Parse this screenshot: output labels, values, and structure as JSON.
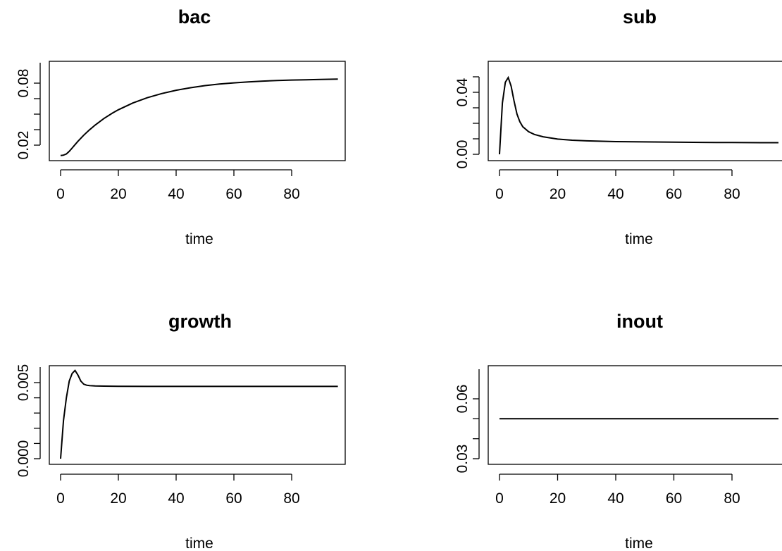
{
  "chart_data": [
    {
      "type": "line",
      "title": "bac",
      "xlabel": "time",
      "ylabel": "",
      "xlim": [
        0,
        96
      ],
      "ylim": [
        0.01,
        0.09
      ],
      "xticks": [
        "0",
        "20",
        "40",
        "60",
        "80"
      ],
      "yticks": [
        "0.02",
        "",
        "",
        "",
        "0.08"
      ],
      "grid": false,
      "series": [
        {
          "x": [
            0,
            1,
            2,
            3,
            4,
            5,
            6,
            8,
            10,
            12,
            15,
            18,
            20,
            25,
            30,
            35,
            40,
            45,
            50,
            55,
            60,
            65,
            70,
            75,
            80,
            85,
            90,
            96
          ],
          "values": [
            0.01,
            0.0103,
            0.0115,
            0.014,
            0.0172,
            0.0205,
            0.0237,
            0.0296,
            0.0348,
            0.0395,
            0.0458,
            0.0511,
            0.0542,
            0.0608,
            0.0659,
            0.0699,
            0.0731,
            0.0756,
            0.0776,
            0.0791,
            0.0803,
            0.0812,
            0.082,
            0.0825,
            0.083,
            0.0833,
            0.0836,
            0.0839
          ]
        }
      ]
    },
    {
      "type": "line",
      "title": "sub",
      "xlabel": "time",
      "ylabel": "",
      "xlim": [
        0,
        96
      ],
      "ylim": [
        0,
        0.05
      ],
      "xticks": [
        "0",
        "20",
        "40",
        "60",
        "80"
      ],
      "yticks": [
        "0.00",
        "",
        "",
        "",
        "0.04",
        ""
      ],
      "grid": false,
      "series": [
        {
          "x": [
            0,
            1,
            2,
            3,
            4,
            5,
            6,
            7,
            8,
            10,
            12,
            15,
            20,
            25,
            30,
            40,
            50,
            60,
            70,
            80,
            90,
            96
          ],
          "values": [
            0,
            0.033,
            0.0465,
            0.0495,
            0.044,
            0.0345,
            0.026,
            0.021,
            0.0178,
            0.0146,
            0.0128,
            0.0113,
            0.0098,
            0.0091,
            0.0087,
            0.0082,
            0.008,
            0.0078,
            0.0077,
            0.0076,
            0.0075,
            0.0075
          ]
        }
      ]
    },
    {
      "type": "line",
      "title": "growth",
      "xlabel": "time",
      "ylabel": "",
      "xlim": [
        0,
        96
      ],
      "ylim": [
        0,
        0.006
      ],
      "xticks": [
        "0",
        "20",
        "40",
        "60",
        "80"
      ],
      "yticks": [
        "0.000",
        "",
        "",
        "",
        "",
        "0.005"
      ],
      "grid": false,
      "series": [
        {
          "x": [
            0,
            1,
            2,
            3,
            4,
            5,
            6,
            7,
            8,
            9,
            10,
            12,
            15,
            20,
            30,
            40,
            50,
            60,
            70,
            80,
            90,
            96
          ],
          "values": [
            0,
            0.0025,
            0.004,
            0.0051,
            0.0056,
            0.0058,
            0.0055,
            0.0051,
            0.0049,
            0.00483,
            0.0048,
            0.00478,
            0.00477,
            0.00476,
            0.00475,
            0.00475,
            0.00475,
            0.00475,
            0.00475,
            0.00475,
            0.00475,
            0.00475
          ]
        }
      ]
    },
    {
      "type": "line",
      "title": "inout",
      "xlabel": "time",
      "ylabel": "",
      "xlim": [
        0,
        96
      ],
      "ylim": [
        0.03,
        0.07
      ],
      "xticks": [
        "0",
        "20",
        "40",
        "60",
        "80"
      ],
      "yticks": [
        "0.03",
        "",
        "",
        "0.06"
      ],
      "grid": false,
      "series": [
        {
          "x": [
            0,
            96
          ],
          "values": [
            0.05,
            0.05
          ]
        }
      ]
    }
  ]
}
